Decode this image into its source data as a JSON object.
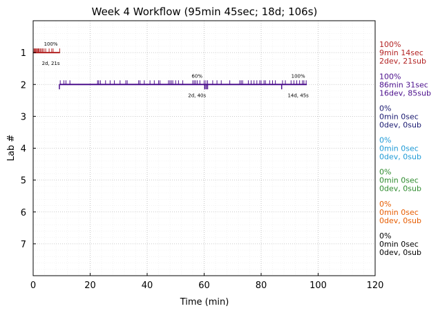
{
  "chart_data": {
    "type": "timeline",
    "title": "Week 4 Workflow (95min 45sec; 18d; 106s)",
    "xlabel": "Time (min)",
    "ylabel": "Lab #",
    "xlim": [
      0,
      120
    ],
    "ylim": [
      8,
      0
    ],
    "xticks": [
      0,
      20,
      40,
      60,
      80,
      100,
      120
    ],
    "yticks": [
      1,
      2,
      3,
      4,
      5,
      6,
      7
    ],
    "grid": true,
    "minor_grid": true,
    "labs": [
      {
        "lab": 1,
        "color": "#b22222",
        "start": 0.1,
        "end": 9.4,
        "submit_ticks": [
          0.3,
          0.6,
          0.9,
          1.2,
          1.5,
          1.8,
          2.1,
          2.5,
          2.9,
          3.3,
          3.8,
          4.4,
          5.6,
          6.5,
          7.0,
          9.3
        ],
        "checkpoints": [
          {
            "x": 6.2,
            "progress": "100%",
            "detail": "2d, 21s"
          }
        ],
        "summary": [
          "100%",
          "9min 14sec",
          "2dev, 21sub"
        ]
      },
      {
        "lab": 2,
        "color": "#4b0f8c",
        "start": 9.2,
        "end": 96.0,
        "submit_ticks": [
          9.5,
          10.8,
          11.5,
          12.9,
          22.6,
          23.0,
          23.6,
          25.4,
          27.0,
          28.5,
          30.5,
          32.5,
          33.0,
          37.0,
          37.5,
          39.0,
          41.0,
          42.5,
          44.0,
          44.5,
          47.5,
          48.0,
          48.5,
          49.0,
          50.0,
          51.0,
          52.5,
          56.0,
          56.5,
          57.0,
          57.6,
          58.5,
          60.0,
          60.6,
          61.2,
          63.0,
          64.5,
          66.0,
          69.0,
          72.5,
          73.0,
          73.5,
          75.5,
          76.5,
          77.5,
          78.5,
          79.5,
          80.0,
          81.0,
          81.5,
          83.0,
          84.0,
          85.0,
          87.5,
          88.5,
          90.5,
          91.5,
          92.5,
          93.5,
          94.5,
          95.0,
          95.8
        ],
        "dev_ticks": [
          9.2,
          60.2,
          60.7,
          61.2,
          87.2
        ],
        "checkpoints": [
          {
            "x": 57.5,
            "progress": "60%",
            "detail": "2d, 40s"
          },
          {
            "x": 93.0,
            "progress": "100%",
            "detail": "14d, 45s"
          }
        ],
        "summary": [
          "100%",
          "86min 31sec",
          "16dev, 85sub"
        ]
      },
      {
        "lab": 3,
        "color": "#191970",
        "summary": [
          "0%",
          "0min 0sec",
          "0dev, 0sub"
        ]
      },
      {
        "lab": 4,
        "color": "#1e9ad6",
        "summary": [
          "0%",
          "0min 0sec",
          "0dev, 0sub"
        ]
      },
      {
        "lab": 5,
        "color": "#2e8b2e",
        "summary": [
          "0%",
          "0min 0sec",
          "0dev, 0sub"
        ]
      },
      {
        "lab": 6,
        "color": "#e65c00",
        "summary": [
          "0%",
          "0min 0sec",
          "0dev, 0sub"
        ]
      },
      {
        "lab": 7,
        "color": "#000000",
        "summary": [
          "0%",
          "0min 0sec",
          "0dev, 0sub"
        ]
      }
    ]
  }
}
